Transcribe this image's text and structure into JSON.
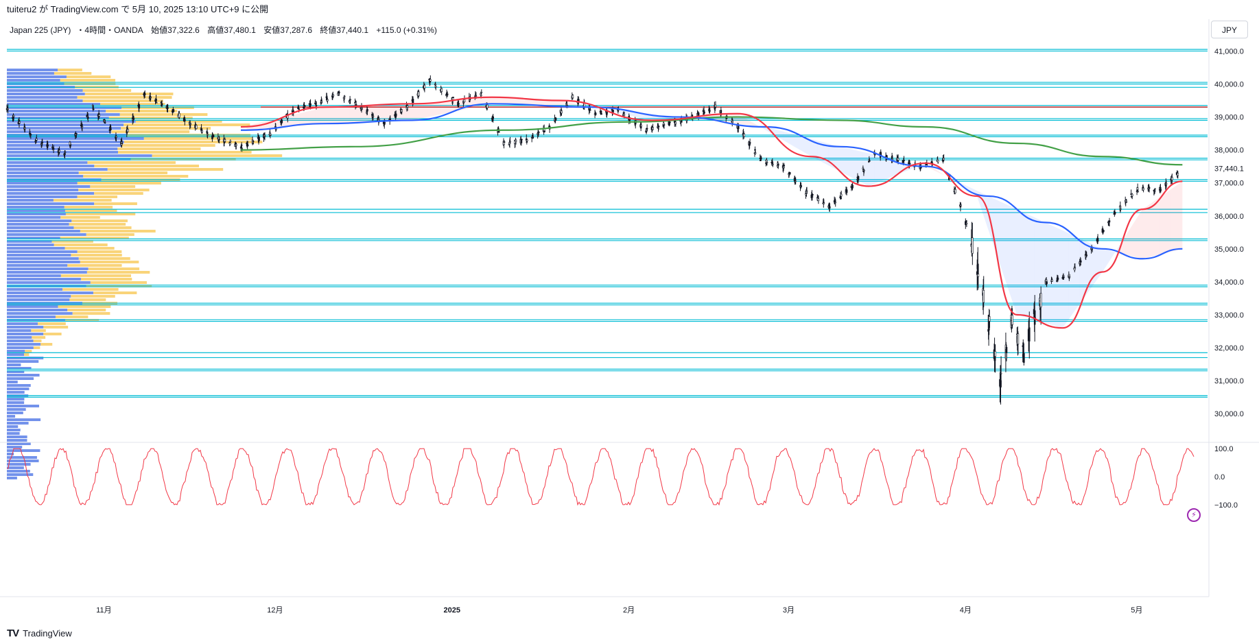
{
  "header": {
    "published_line": "tuiteru2 が TradingView.com で 5月 10, 2025 13:10 UTC+9 に公開"
  },
  "legend": {
    "symbol": "Japan 225 (JPY)",
    "interval": "・4時間・",
    "broker": "OANDA",
    "open_label": "始値",
    "open": "37,322.6",
    "high_label": "高値",
    "high": "37,480.1",
    "low_label": "安値",
    "low": "37,287.6",
    "close_label": "終値",
    "close": "37,440.1",
    "change": "+115.0 (+0.31%)"
  },
  "currency_button": "JPY",
  "footer": {
    "brand": "TradingView",
    "logo": "tv-logo-icon"
  },
  "colors": {
    "candles": "#131722",
    "ma_fast": "#f23645",
    "ma_mid": "#2962ff",
    "ma_slow": "#43a047",
    "hlines": "#00bcd4",
    "resistance": "#c62828",
    "vp_up": "#f7c64e",
    "vp_down": "#5b7fe8",
    "oscillator": "#f23645"
  },
  "chart_data": [
    {
      "type": "line",
      "name": "Japan 225 (JPY) 4h price",
      "y_ticks": [
        "41,000.0",
        "40,000.0",
        "39,000.0",
        "38,000.0",
        "37,000.0",
        "36,000.0",
        "35,000.0",
        "34,000.0",
        "33,000.0",
        "32,000.0",
        "31,000.0",
        "30,000.0"
      ],
      "ylim": [
        29650,
        41300
      ],
      "current_price_label": "37,440.1",
      "x_labels": [
        "11月",
        "12月",
        "2025",
        "2月",
        "3月",
        "4月",
        "5月"
      ],
      "series": [
        {
          "label": "price",
          "x": [
            "2024-10-15",
            "2024-10-20",
            "2024-10-25",
            "2024-10-30",
            "2024-11-04",
            "2024-11-08",
            "2024-11-12",
            "2024-11-16",
            "2024-11-20",
            "2024-11-25",
            "2024-11-30",
            "2024-12-04",
            "2024-12-08",
            "2024-12-12",
            "2024-12-16",
            "2024-12-20",
            "2024-12-24",
            "2024-12-28",
            "2025-01-02",
            "2025-01-06",
            "2025-01-10",
            "2025-01-14",
            "2025-01-18",
            "2025-01-22",
            "2025-01-26",
            "2025-01-30",
            "2025-02-04",
            "2025-02-08",
            "2025-02-12",
            "2025-02-16",
            "2025-02-20",
            "2025-02-24",
            "2025-02-28",
            "2025-03-04",
            "2025-03-08",
            "2025-03-12",
            "2025-03-16",
            "2025-03-20",
            "2025-03-24",
            "2025-03-28",
            "2025-04-01",
            "2025-04-04",
            "2025-04-07",
            "2025-04-09",
            "2025-04-11",
            "2025-04-15",
            "2025-04-19",
            "2025-04-23",
            "2025-04-27",
            "2025-05-01",
            "2025-05-05",
            "2025-05-09"
          ],
          "y": [
            39200,
            38300,
            37900,
            39300,
            38200,
            39700,
            39300,
            38800,
            38400,
            38100,
            38500,
            39200,
            39400,
            39700,
            39300,
            38800,
            39300,
            40100,
            39400,
            39700,
            38200,
            38300,
            38700,
            39600,
            39100,
            39200,
            38600,
            38800,
            39000,
            39300,
            38700,
            37700,
            37500,
            36700,
            36300,
            36900,
            37900,
            37700,
            37500,
            37700,
            35800,
            33600,
            31000,
            32800,
            31800,
            34000,
            34200,
            35000,
            36100,
            36800,
            36800,
            37440
          ]
        },
        {
          "label": "ma_fast",
          "x": [
            "2024-11-25",
            "2024-12-10",
            "2024-12-25",
            "2025-01-08",
            "2025-01-20",
            "2025-02-05",
            "2025-02-20",
            "2025-03-05",
            "2025-03-15",
            "2025-03-25",
            "2025-04-03",
            "2025-04-10",
            "2025-04-18",
            "2025-04-25",
            "2025-05-02",
            "2025-05-09"
          ],
          "y": [
            38700,
            39300,
            39400,
            39600,
            39500,
            38900,
            39100,
            37800,
            36900,
            37600,
            36600,
            33000,
            32600,
            34300,
            36200,
            37050
          ]
        },
        {
          "label": "ma_mid",
          "x": [
            "2024-11-25",
            "2024-12-10",
            "2024-12-25",
            "2025-01-08",
            "2025-01-25",
            "2025-02-10",
            "2025-02-25",
            "2025-03-10",
            "2025-03-25",
            "2025-04-05",
            "2025-04-15",
            "2025-04-25",
            "2025-05-02",
            "2025-05-09"
          ],
          "y": [
            38600,
            38800,
            38900,
            39400,
            39300,
            39000,
            38700,
            38100,
            37500,
            36600,
            35800,
            35000,
            34700,
            35000
          ]
        },
        {
          "label": "ma_slow",
          "x": [
            "2024-11-25",
            "2024-12-15",
            "2025-01-10",
            "2025-02-01",
            "2025-02-20",
            "2025-03-10",
            "2025-03-25",
            "2025-04-10",
            "2025-04-25",
            "2025-05-09"
          ],
          "y": [
            38000,
            38100,
            38600,
            38850,
            39000,
            38900,
            38700,
            38200,
            37800,
            37550
          ]
        }
      ],
      "horizontal_levels": [
        41050,
        41000,
        40050,
        40000,
        39900,
        39350,
        39300,
        38950,
        38900,
        38450,
        38400,
        37750,
        37700,
        37100,
        37050,
        36200,
        36100,
        35300,
        35250,
        33900,
        33850,
        33350,
        33300,
        32850,
        32800,
        31850,
        31700,
        31350,
        31300,
        30550,
        30500
      ],
      "resistance_level": 39300
    },
    {
      "type": "line",
      "name": "oscillator",
      "y_ticks": [
        "100.0",
        "0.0",
        "−100.0"
      ],
      "ylim": [
        -110,
        110
      ]
    }
  ]
}
